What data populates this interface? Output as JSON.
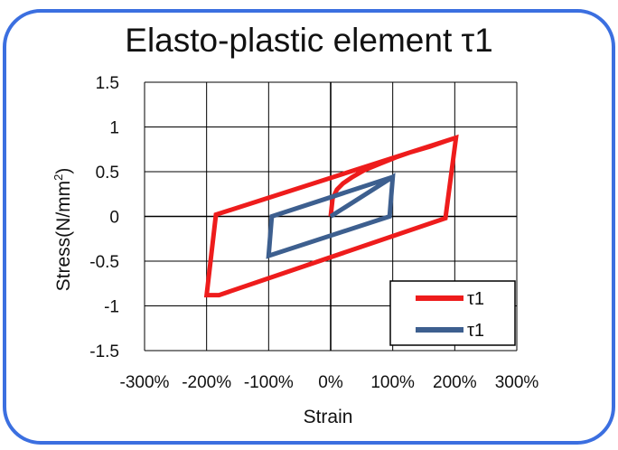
{
  "chart_data": {
    "type": "line",
    "title": "Elasto-plastic element τ1",
    "xlabel": "Strain",
    "ylabel": "Stress(N/mm",
    "ylabel_sup": "2",
    "ylabel_end": ")",
    "xlim": [
      -3,
      3
    ],
    "ylim": [
      -1.5,
      1.5
    ],
    "x_ticks": [
      -3,
      -2,
      -1,
      0,
      1,
      2,
      3
    ],
    "x_tick_labels": [
      "-300%",
      "-200%",
      "-100%",
      "0%",
      "100%",
      "200%",
      "300%"
    ],
    "y_ticks": [
      1.5,
      1,
      0.5,
      0,
      -0.5,
      -1,
      -1.5
    ],
    "y_tick_labels": [
      "1.5",
      "1",
      "0.5",
      "0",
      "-0.5",
      "-1",
      "-1.5"
    ],
    "grid": true,
    "legend_position": "bottom-right",
    "series": [
      {
        "name": "τ1",
        "color": "#ee1c1c",
        "x": [
          0.0,
          0.03,
          0.1,
          0.2,
          0.35,
          0.55,
          0.8,
          1.05,
          1.3,
          1.6,
          1.85,
          2.02,
          1.85,
          -1.8,
          -2.0,
          -1.85,
          2.02
        ],
        "y": [
          0.0,
          0.2,
          0.3,
          0.37,
          0.44,
          0.52,
          0.59,
          0.66,
          0.72,
          0.78,
          0.84,
          0.88,
          -0.02,
          -0.88,
          -0.88,
          0.02,
          0.88
        ]
      },
      {
        "name": "τ1",
        "color": "#3d5f8f",
        "x": [
          0.0,
          1.0,
          0.95,
          -1.0,
          -0.95,
          1.0
        ],
        "y": [
          0.0,
          0.44,
          0.0,
          -0.44,
          0.0,
          0.44
        ]
      }
    ]
  }
}
